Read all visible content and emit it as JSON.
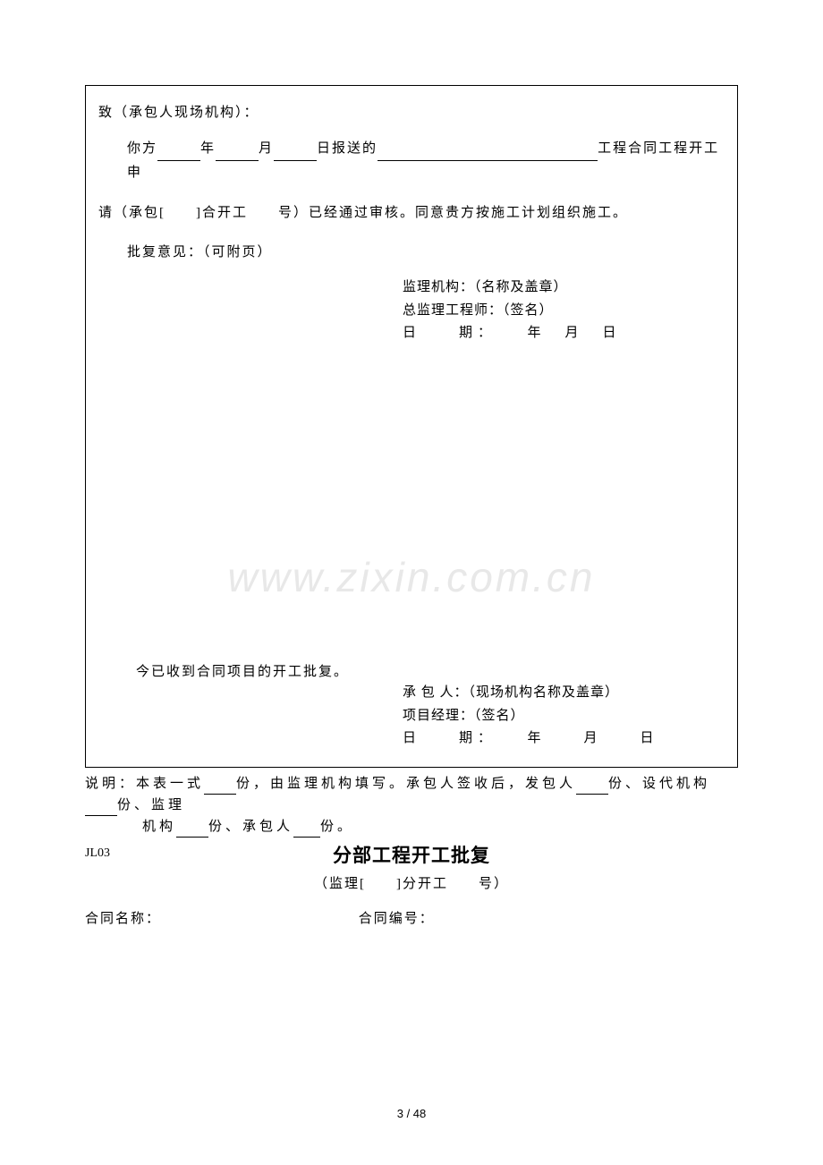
{
  "watermark": "www.zixin.com.cn",
  "form": {
    "greeting": "致（承包人现场机构）：",
    "line1_part1": "你方",
    "line1_year_suffix": "年",
    "line1_month_suffix": "月",
    "line1_day_suffix": "日报送的",
    "line1_end": "工程合同工程开工申",
    "line2": "请（承包[　　]合开工　　号）已经通过审核。同意贵方按施工计划组织施工。",
    "line3": "批复意见：（可附页）",
    "sig1_org": "监理机构：（名称及盖章）",
    "sig1_eng": "总监理工程师：（签名）",
    "sig1_date": "日　　期：　　年　月　日",
    "received": "今已收到合同项目的开工批复。",
    "sig2_contractor": "承 包 人：（现场机构名称及盖章）",
    "sig2_mgr": "项目经理：（签名）",
    "sig2_date": "日　　期：　　年　　月　　日"
  },
  "explanation": {
    "prefix": "说明：本表一式",
    "part2": "份，由监理机构填写。承包人签收后，发包人",
    "part3": "份、设代机构",
    "part4": "份、监理",
    "line2_part1": "机构",
    "line2_part2": "份、承包人",
    "line2_part3": "份。"
  },
  "next_section": {
    "code": "JL03",
    "title": "分部工程开工批复",
    "subtitle": "（监理[　　]分开工　　号）",
    "contract_name_label": "合同名称：",
    "contract_number_label": "合同编号："
  },
  "page_number": "3 / 48"
}
